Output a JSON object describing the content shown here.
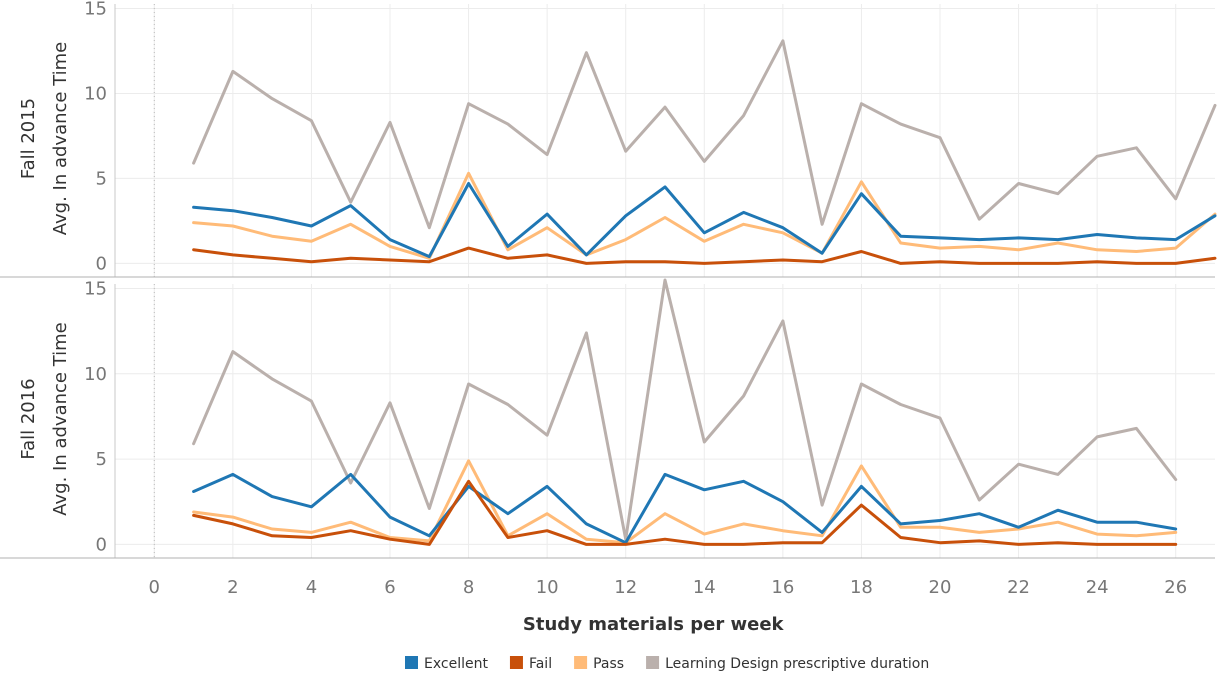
{
  "chart_data": {
    "type": "line",
    "x_title": "Study materials per week",
    "y_title": "Avg. In advance Time",
    "xlim": [
      -1,
      27
    ],
    "x_ticks": [
      0,
      2,
      4,
      6,
      8,
      10,
      12,
      14,
      16,
      18,
      20,
      22,
      24,
      26
    ],
    "y_ticks": [
      0,
      5,
      10,
      15
    ],
    "legend_position": "bottom",
    "legend": [
      {
        "name": "Excellent",
        "color": "#1f77b4"
      },
      {
        "name": "Fail",
        "color": "#c8500a"
      },
      {
        "name": "Pass",
        "color": "#ffbb78"
      },
      {
        "name": "Learning Design prescriptive duration",
        "color": "#bab0ac"
      }
    ],
    "panels": [
      {
        "label": "Fall 2015",
        "ylim": [
          -0.8,
          15.5
        ],
        "series": [
          {
            "name": "Learning Design prescriptive duration",
            "color": "#bab0ac",
            "x": [
              1,
              2,
              3,
              4,
              5,
              6,
              7,
              8,
              9,
              10,
              11,
              12,
              13,
              14,
              15,
              16,
              17,
              18,
              19,
              20,
              21,
              22,
              23,
              24,
              25,
              26,
              27
            ],
            "y": [
              5.9,
              11.3,
              9.7,
              8.4,
              3.6,
              8.3,
              2.1,
              9.4,
              8.2,
              6.4,
              12.4,
              6.6,
              9.2,
              6.0,
              8.7,
              13.1,
              2.3,
              9.4,
              8.2,
              7.4,
              2.6,
              4.7,
              4.1,
              6.3,
              6.8,
              3.8,
              9.3
            ]
          },
          {
            "name": "Pass",
            "color": "#ffbb78",
            "x": [
              1,
              2,
              3,
              4,
              5,
              6,
              7,
              8,
              9,
              10,
              11,
              12,
              13,
              14,
              15,
              16,
              17,
              18,
              19,
              20,
              21,
              22,
              23,
              24,
              25,
              26,
              27
            ],
            "y": [
              2.4,
              2.2,
              1.6,
              1.3,
              2.3,
              1.0,
              0.3,
              5.3,
              0.8,
              2.1,
              0.5,
              1.4,
              2.7,
              1.3,
              2.3,
              1.8,
              0.6,
              4.8,
              1.2,
              0.9,
              1.0,
              0.8,
              1.2,
              0.8,
              0.7,
              0.9,
              2.9
            ]
          },
          {
            "name": "Excellent",
            "color": "#1f77b4",
            "x": [
              1,
              2,
              3,
              4,
              5,
              6,
              7,
              8,
              9,
              10,
              11,
              12,
              13,
              14,
              15,
              16,
              17,
              18,
              19,
              20,
              21,
              22,
              23,
              24,
              25,
              26,
              27
            ],
            "y": [
              3.3,
              3.1,
              2.7,
              2.2,
              3.4,
              1.4,
              0.4,
              4.7,
              1.0,
              2.9,
              0.5,
              2.8,
              4.5,
              1.8,
              3.0,
              2.1,
              0.6,
              4.1,
              1.6,
              1.5,
              1.4,
              1.5,
              1.4,
              1.7,
              1.5,
              1.4,
              2.8
            ]
          },
          {
            "name": "Fail",
            "color": "#c8500a",
            "x": [
              1,
              2,
              3,
              4,
              5,
              6,
              7,
              8,
              9,
              10,
              11,
              12,
              13,
              14,
              15,
              16,
              17,
              18,
              19,
              20,
              21,
              22,
              23,
              24,
              25,
              26,
              27
            ],
            "y": [
              0.8,
              0.5,
              0.3,
              0.1,
              0.3,
              0.2,
              0.1,
              0.9,
              0.3,
              0.5,
              0.0,
              0.1,
              0.1,
              0.0,
              0.1,
              0.2,
              0.1,
              0.7,
              0.0,
              0.1,
              0.0,
              0.0,
              0.0,
              0.1,
              0.0,
              0.0,
              0.3
            ]
          }
        ]
      },
      {
        "label": "Fall 2016",
        "ylim": [
          -0.8,
          15.5
        ],
        "series": [
          {
            "name": "Learning Design prescriptive duration",
            "color": "#bab0ac",
            "x": [
              1,
              2,
              3,
              4,
              5,
              6,
              7,
              8,
              9,
              10,
              11,
              12,
              13,
              14,
              15,
              16,
              17,
              18,
              19,
              20,
              21,
              22,
              23,
              24,
              25,
              26
            ],
            "y": [
              5.9,
              11.3,
              9.7,
              8.4,
              3.6,
              8.3,
              2.1,
              9.4,
              8.2,
              6.4,
              12.4,
              0.3,
              15.5,
              6.0,
              8.7,
              13.1,
              2.3,
              9.4,
              8.2,
              7.4,
              2.6,
              4.7,
              4.1,
              6.3,
              6.8,
              3.8
            ]
          },
          {
            "name": "Pass",
            "color": "#ffbb78",
            "x": [
              1,
              2,
              3,
              4,
              5,
              6,
              7,
              8,
              9,
              10,
              11,
              12,
              13,
              14,
              15,
              16,
              17,
              18,
              19,
              20,
              21,
              22,
              23,
              24,
              25,
              26
            ],
            "y": [
              1.9,
              1.6,
              0.9,
              0.7,
              1.3,
              0.4,
              0.2,
              4.9,
              0.5,
              1.8,
              0.3,
              0.1,
              1.8,
              0.6,
              1.2,
              0.8,
              0.5,
              4.6,
              1.0,
              1.0,
              0.7,
              0.9,
              1.3,
              0.6,
              0.5,
              0.7
            ]
          },
          {
            "name": "Excellent",
            "color": "#1f77b4",
            "x": [
              1,
              2,
              3,
              4,
              5,
              6,
              7,
              8,
              9,
              10,
              11,
              12,
              13,
              14,
              15,
              16,
              17,
              18,
              19,
              20,
              21,
              22,
              23,
              24,
              25,
              26
            ],
            "y": [
              3.1,
              4.1,
              2.8,
              2.2,
              4.1,
              1.6,
              0.5,
              3.4,
              1.8,
              3.4,
              1.2,
              0.1,
              4.1,
              3.2,
              3.7,
              2.5,
              0.7,
              3.4,
              1.2,
              1.4,
              1.8,
              1.0,
              2.0,
              1.3,
              1.3,
              0.9
            ]
          },
          {
            "name": "Fail",
            "color": "#c8500a",
            "x": [
              1,
              2,
              3,
              4,
              5,
              6,
              7,
              8,
              9,
              10,
              11,
              12,
              13,
              14,
              15,
              16,
              17,
              18,
              19,
              20,
              21,
              22,
              23,
              24,
              25,
              26
            ],
            "y": [
              1.7,
              1.2,
              0.5,
              0.4,
              0.8,
              0.3,
              0.0,
              3.7,
              0.4,
              0.8,
              0.0,
              0.0,
              0.3,
              0.0,
              0.0,
              0.1,
              0.1,
              2.3,
              0.4,
              0.1,
              0.2,
              0.0,
              0.1,
              0.0,
              0.0,
              0.0
            ]
          }
        ]
      }
    ]
  }
}
